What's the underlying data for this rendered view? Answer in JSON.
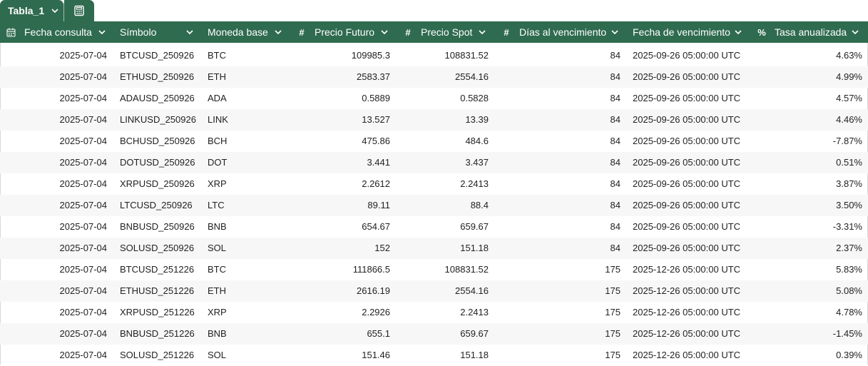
{
  "tab": {
    "label": "Tabla_1"
  },
  "header": {
    "fecha_consulta": "Fecha consulta",
    "simbolo": "Símbolo",
    "moneda_base": "Moneda base",
    "precio_futuro": "Precio Futuro",
    "precio_spot": "Precio Spot",
    "dias_vencimiento": "Días al vencimiento",
    "fecha_vencimiento": "Fecha de vencimiento",
    "tasa_anualizada": "Tasa anualizada",
    "hash_symbol": "#",
    "percent_symbol": "%"
  },
  "rows": [
    {
      "fecha": "2025-07-04",
      "simbolo": "BTCUSD_250926",
      "moneda": "BTC",
      "futuro": "109985.3",
      "spot": "108831.52",
      "dias": "84",
      "vencimiento": "2025-09-26 05:00:00 UTC",
      "tasa": "4.63%"
    },
    {
      "fecha": "2025-07-04",
      "simbolo": "ETHUSD_250926",
      "moneda": "ETH",
      "futuro": "2583.37",
      "spot": "2554.16",
      "dias": "84",
      "vencimiento": "2025-09-26 05:00:00 UTC",
      "tasa": "4.99%"
    },
    {
      "fecha": "2025-07-04",
      "simbolo": "ADAUSD_250926",
      "moneda": "ADA",
      "futuro": "0.5889",
      "spot": "0.5828",
      "dias": "84",
      "vencimiento": "2025-09-26 05:00:00 UTC",
      "tasa": "4.57%"
    },
    {
      "fecha": "2025-07-04",
      "simbolo": "LINKUSD_250926",
      "moneda": "LINK",
      "futuro": "13.527",
      "spot": "13.39",
      "dias": "84",
      "vencimiento": "2025-09-26 05:00:00 UTC",
      "tasa": "4.46%"
    },
    {
      "fecha": "2025-07-04",
      "simbolo": "BCHUSD_250926",
      "moneda": "BCH",
      "futuro": "475.86",
      "spot": "484.6",
      "dias": "84",
      "vencimiento": "2025-09-26 05:00:00 UTC",
      "tasa": "-7.87%"
    },
    {
      "fecha": "2025-07-04",
      "simbolo": "DOTUSD_250926",
      "moneda": "DOT",
      "futuro": "3.441",
      "spot": "3.437",
      "dias": "84",
      "vencimiento": "2025-09-26 05:00:00 UTC",
      "tasa": "0.51%"
    },
    {
      "fecha": "2025-07-04",
      "simbolo": "XRPUSD_250926",
      "moneda": "XRP",
      "futuro": "2.2612",
      "spot": "2.2413",
      "dias": "84",
      "vencimiento": "2025-09-26 05:00:00 UTC",
      "tasa": "3.87%"
    },
    {
      "fecha": "2025-07-04",
      "simbolo": "LTCUSD_250926",
      "moneda": "LTC",
      "futuro": "89.11",
      "spot": "88.4",
      "dias": "84",
      "vencimiento": "2025-09-26 05:00:00 UTC",
      "tasa": "3.50%"
    },
    {
      "fecha": "2025-07-04",
      "simbolo": "BNBUSD_250926",
      "moneda": "BNB",
      "futuro": "654.67",
      "spot": "659.67",
      "dias": "84",
      "vencimiento": "2025-09-26 05:00:00 UTC",
      "tasa": "-3.31%"
    },
    {
      "fecha": "2025-07-04",
      "simbolo": "SOLUSD_250926",
      "moneda": "SOL",
      "futuro": "152",
      "spot": "151.18",
      "dias": "84",
      "vencimiento": "2025-09-26 05:00:00 UTC",
      "tasa": "2.37%"
    },
    {
      "fecha": "2025-07-04",
      "simbolo": "BTCUSD_251226",
      "moneda": "BTC",
      "futuro": "111866.5",
      "spot": "108831.52",
      "dias": "175",
      "vencimiento": "2025-12-26 05:00:00 UTC",
      "tasa": "5.83%"
    },
    {
      "fecha": "2025-07-04",
      "simbolo": "ETHUSD_251226",
      "moneda": "ETH",
      "futuro": "2616.19",
      "spot": "2554.16",
      "dias": "175",
      "vencimiento": "2025-12-26 05:00:00 UTC",
      "tasa": "5.08%"
    },
    {
      "fecha": "2025-07-04",
      "simbolo": "XRPUSD_251226",
      "moneda": "XRP",
      "futuro": "2.2926",
      "spot": "2.2413",
      "dias": "175",
      "vencimiento": "2025-12-26 05:00:00 UTC",
      "tasa": "4.78%"
    },
    {
      "fecha": "2025-07-04",
      "simbolo": "BNBUSD_251226",
      "moneda": "BNB",
      "futuro": "655.1",
      "spot": "659.67",
      "dias": "175",
      "vencimiento": "2025-12-26 05:00:00 UTC",
      "tasa": "-1.45%"
    },
    {
      "fecha": "2025-07-04",
      "simbolo": "SOLUSD_251226",
      "moneda": "SOL",
      "futuro": "151.46",
      "spot": "151.18",
      "dias": "175",
      "vencimiento": "2025-12-26 05:00:00 UTC",
      "tasa": "0.39%"
    }
  ],
  "colors": {
    "header_bg": "#2f6b4f",
    "header_text": "#ffffff",
    "row_alt": "#f7f7f7"
  },
  "icons": {
    "tab_dropdown": "chevron-down-icon",
    "calc": "calculator-icon",
    "date_col": "calendar-icon",
    "sort_dropdown": "chevron-down-icon"
  }
}
